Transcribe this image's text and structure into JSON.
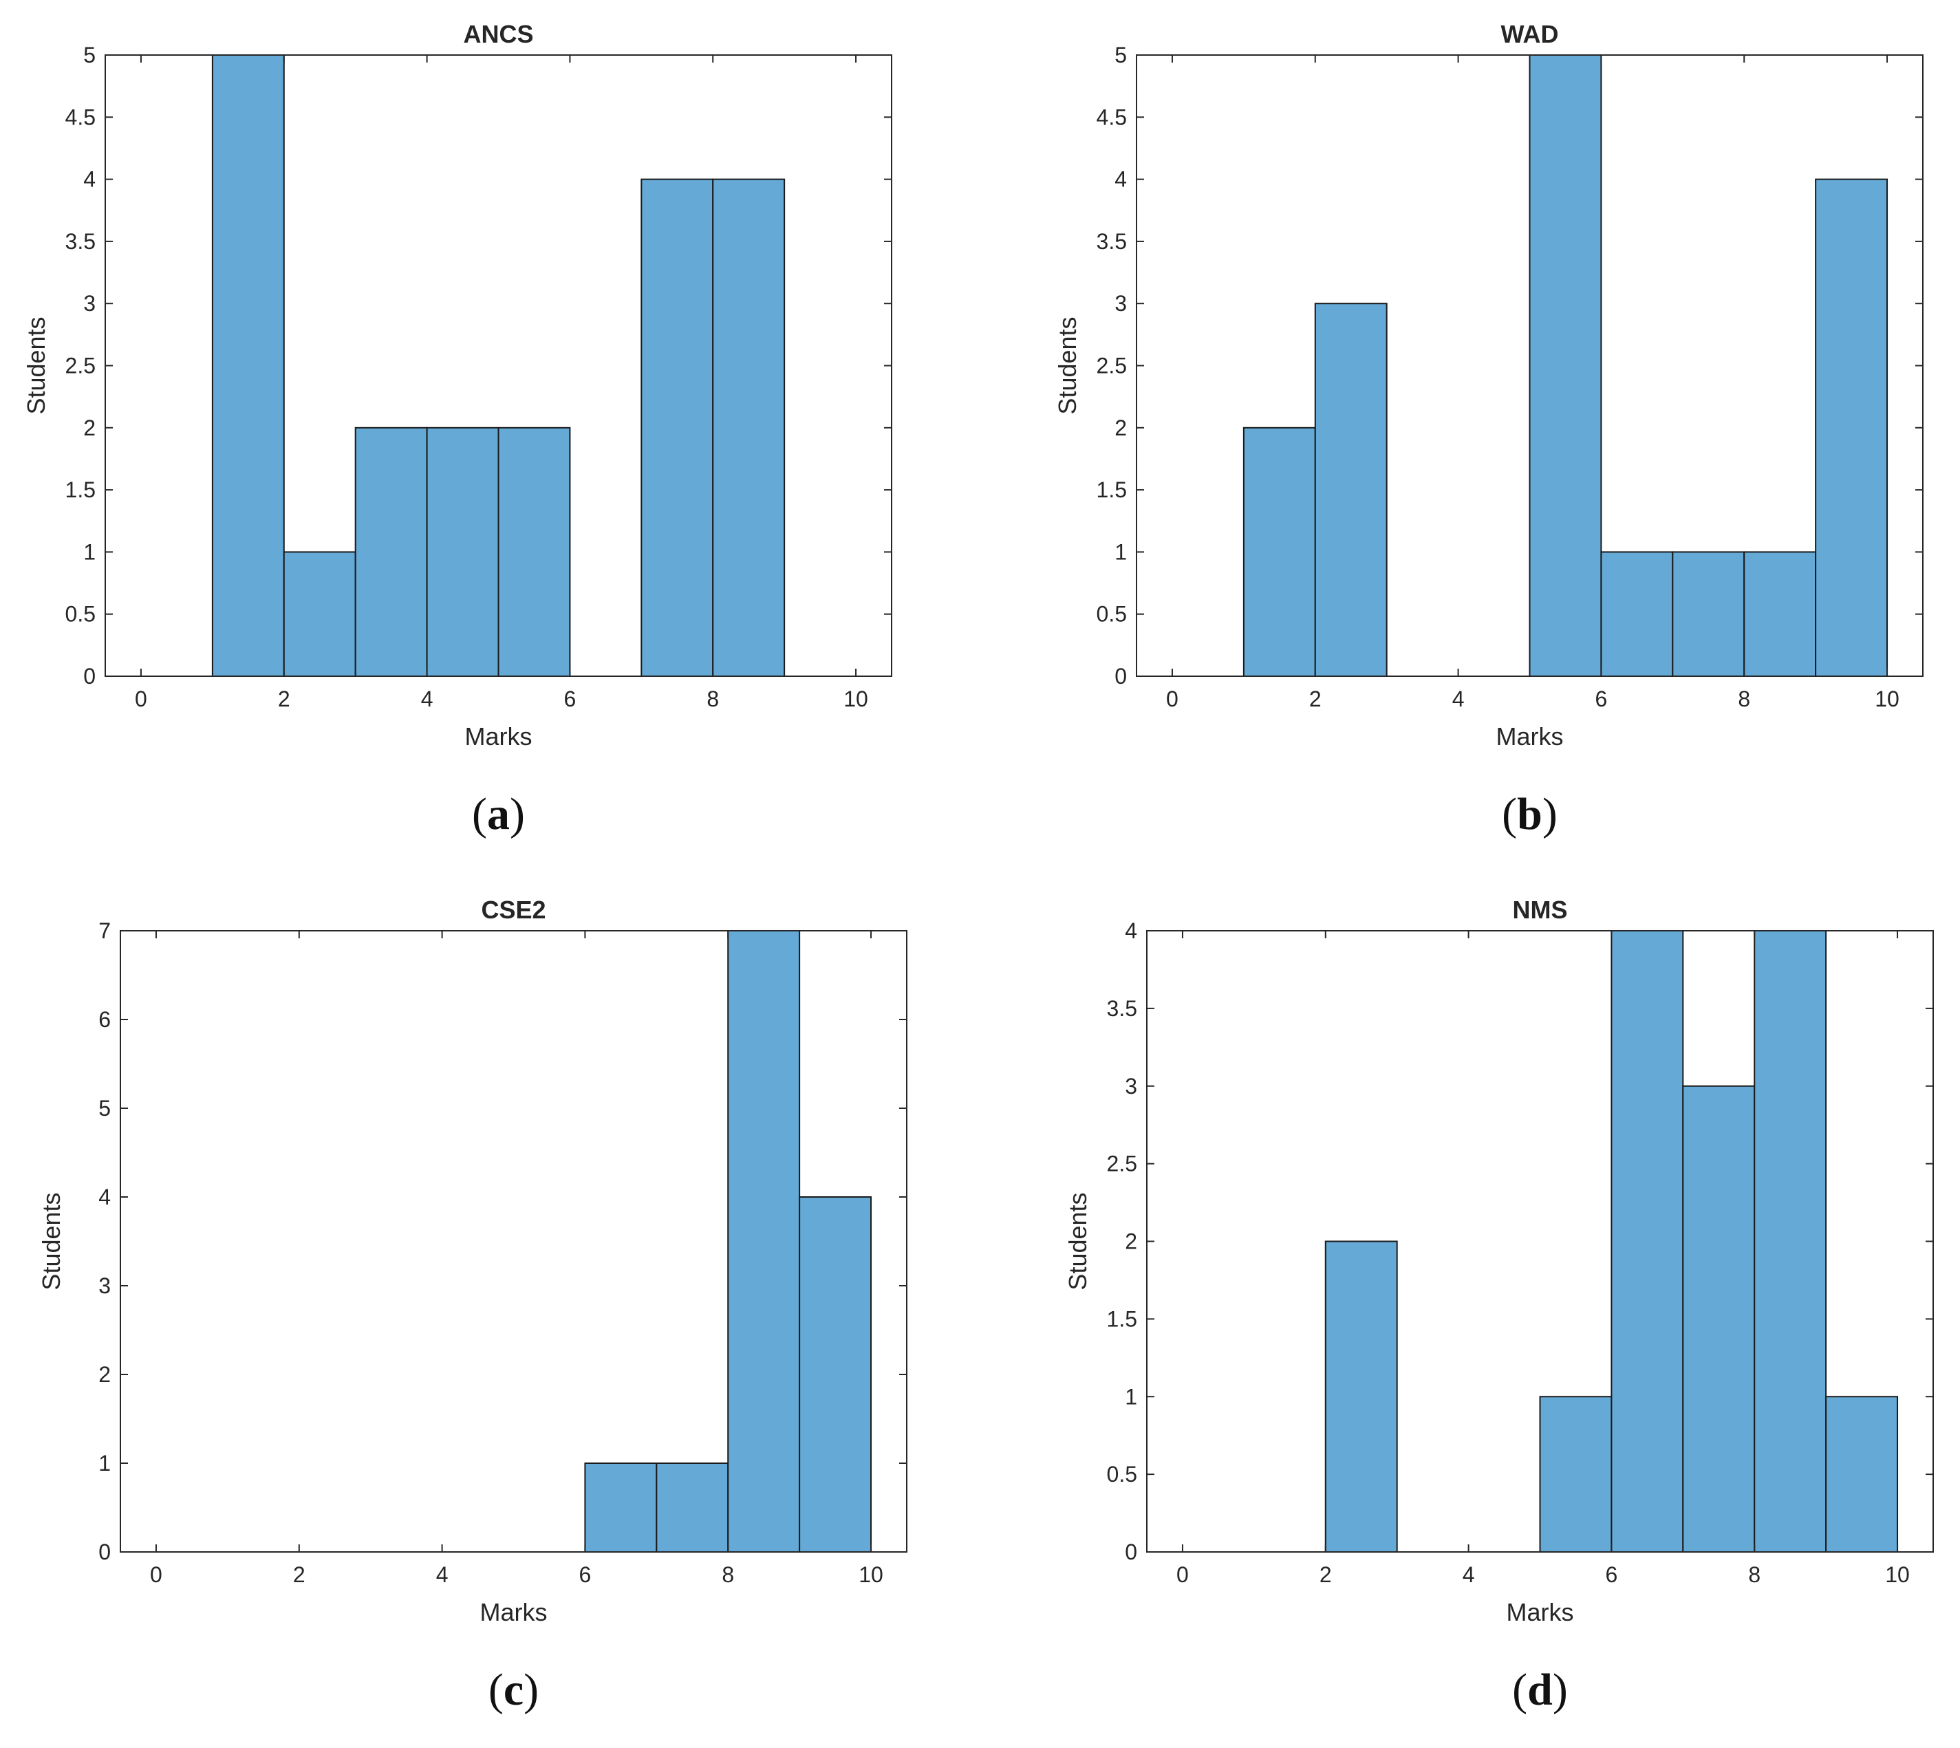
{
  "colors": {
    "bar_fill": "#65a9d6",
    "bar_edge": "#1a1a1a",
    "axis": "#262626"
  },
  "chart_data": [
    {
      "type": "bar",
      "panel": "a",
      "title": "ANCS",
      "xlabel": "Marks",
      "ylabel": "Students",
      "xlim": [
        -0.5,
        10.5
      ],
      "ylim": [
        0,
        5
      ],
      "xticks": [
        0,
        2,
        4,
        6,
        8,
        10
      ],
      "yticks": [
        0,
        0.5,
        1,
        1.5,
        2,
        2.5,
        3,
        3.5,
        4,
        4.5,
        5
      ],
      "bins": [
        {
          "start": 1,
          "end": 2,
          "count": 5
        },
        {
          "start": 2,
          "end": 3,
          "count": 1
        },
        {
          "start": 3,
          "end": 4,
          "count": 2
        },
        {
          "start": 4,
          "end": 5,
          "count": 2
        },
        {
          "start": 5,
          "end": 6,
          "count": 2
        },
        {
          "start": 7,
          "end": 8,
          "count": 4
        },
        {
          "start": 8,
          "end": 9,
          "count": 4
        }
      ]
    },
    {
      "type": "bar",
      "panel": "b",
      "title": "WAD",
      "xlabel": "Marks",
      "ylabel": "Students",
      "xlim": [
        -0.5,
        10.5
      ],
      "ylim": [
        0,
        5
      ],
      "xticks": [
        0,
        2,
        4,
        6,
        8,
        10
      ],
      "yticks": [
        0,
        0.5,
        1,
        1.5,
        2,
        2.5,
        3,
        3.5,
        4,
        4.5,
        5
      ],
      "bins": [
        {
          "start": 1,
          "end": 2,
          "count": 2
        },
        {
          "start": 2,
          "end": 3,
          "count": 3
        },
        {
          "start": 5,
          "end": 6,
          "count": 5
        },
        {
          "start": 6,
          "end": 7,
          "count": 1
        },
        {
          "start": 7,
          "end": 8,
          "count": 1
        },
        {
          "start": 8,
          "end": 9,
          "count": 1
        },
        {
          "start": 9,
          "end": 10,
          "count": 4
        }
      ]
    },
    {
      "type": "bar",
      "panel": "c",
      "title": "CSE2",
      "xlabel": "Marks",
      "ylabel": "Students",
      "xlim": [
        -0.5,
        10.5
      ],
      "ylim": [
        0,
        7
      ],
      "xticks": [
        0,
        2,
        4,
        6,
        8,
        10
      ],
      "yticks": [
        0,
        1,
        2,
        3,
        4,
        5,
        6,
        7
      ],
      "bins": [
        {
          "start": 6,
          "end": 7,
          "count": 1
        },
        {
          "start": 7,
          "end": 8,
          "count": 1
        },
        {
          "start": 8,
          "end": 9,
          "count": 7
        },
        {
          "start": 9,
          "end": 10,
          "count": 4
        }
      ]
    },
    {
      "type": "bar",
      "panel": "d",
      "title": "NMS",
      "xlabel": "Marks",
      "ylabel": "Students",
      "xlim": [
        -0.5,
        10.5
      ],
      "ylim": [
        0,
        4
      ],
      "xticks": [
        0,
        2,
        4,
        6,
        8,
        10
      ],
      "yticks": [
        0,
        0.5,
        1,
        1.5,
        2,
        2.5,
        3,
        3.5,
        4
      ],
      "bins": [
        {
          "start": 2,
          "end": 3,
          "count": 2
        },
        {
          "start": 5,
          "end": 6,
          "count": 1
        },
        {
          "start": 6,
          "end": 7,
          "count": 4
        },
        {
          "start": 7,
          "end": 8,
          "count": 3
        },
        {
          "start": 8,
          "end": 9,
          "count": 4
        },
        {
          "start": 9,
          "end": 10,
          "count": 1
        }
      ]
    }
  ]
}
